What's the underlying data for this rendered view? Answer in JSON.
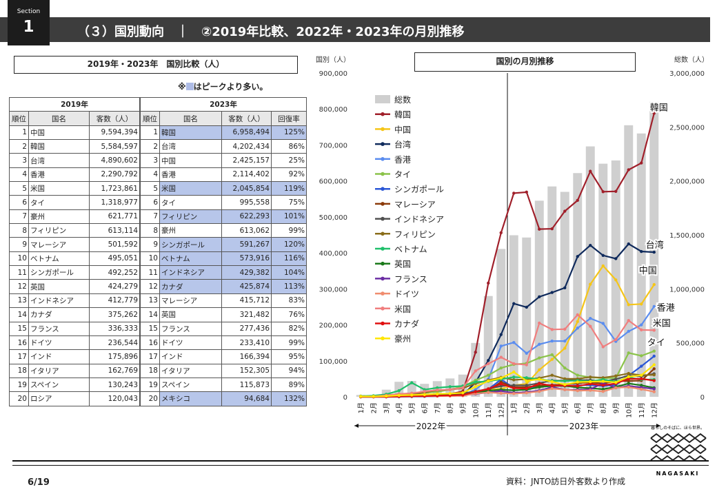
{
  "header": {
    "section_label": "Section",
    "section_num": "1",
    "title": "（３）国別動向　｜　②2019年比較、2022年・2023年の月別推移"
  },
  "left_title": "2019年・2023年　国別比較（人）",
  "note": "※■はピークより多い。",
  "table2019": {
    "group": "2019年",
    "headers": [
      "順位",
      "国名",
      "客数（人）"
    ],
    "rows": [
      [
        "1",
        "中国",
        "9,594,394"
      ],
      [
        "2",
        "韓国",
        "5,584,597"
      ],
      [
        "3",
        "台湾",
        "4,890,602"
      ],
      [
        "4",
        "香港",
        "2,290,792"
      ],
      [
        "5",
        "米国",
        "1,723,861"
      ],
      [
        "6",
        "タイ",
        "1,318,977"
      ],
      [
        "7",
        "豪州",
        "621,771"
      ],
      [
        "8",
        "フィリピン",
        "613,114"
      ],
      [
        "9",
        "マレーシア",
        "501,592"
      ],
      [
        "10",
        "ベトナム",
        "495,051"
      ],
      [
        "11",
        "シンガポール",
        "492,252"
      ],
      [
        "12",
        "英国",
        "424,279"
      ],
      [
        "13",
        "インドネシア",
        "412,779"
      ],
      [
        "14",
        "カナダ",
        "375,262"
      ],
      [
        "15",
        "フランス",
        "336,333"
      ],
      [
        "16",
        "ドイツ",
        "236,544"
      ],
      [
        "17",
        "インド",
        "175,896"
      ],
      [
        "18",
        "イタリア",
        "162,769"
      ],
      [
        "19",
        "スペイン",
        "130,243"
      ],
      [
        "20",
        "ロシア",
        "120,043"
      ]
    ]
  },
  "table2023": {
    "group": "2023年",
    "headers": [
      "順位",
      "国名",
      "客数（人）",
      "回復率"
    ],
    "rows": [
      [
        "1",
        "韓国",
        "6,958,494",
        "125%",
        true
      ],
      [
        "2",
        "台湾",
        "4,202,434",
        "86%",
        false
      ],
      [
        "3",
        "中国",
        "2,425,157",
        "25%",
        false
      ],
      [
        "4",
        "香港",
        "2,114,402",
        "92%",
        false
      ],
      [
        "5",
        "米国",
        "2,045,854",
        "119%",
        true
      ],
      [
        "6",
        "タイ",
        "995,558",
        "75%",
        false
      ],
      [
        "7",
        "フィリピン",
        "622,293",
        "101%",
        true
      ],
      [
        "8",
        "豪州",
        "613,062",
        "99%",
        false
      ],
      [
        "9",
        "シンガポール",
        "591,267",
        "120%",
        true
      ],
      [
        "10",
        "ベトナム",
        "573,916",
        "116%",
        true
      ],
      [
        "11",
        "インドネシア",
        "429,382",
        "104%",
        true
      ],
      [
        "12",
        "カナダ",
        "425,874",
        "113%",
        true
      ],
      [
        "13",
        "マレーシア",
        "415,712",
        "83%",
        false
      ],
      [
        "14",
        "英国",
        "321,482",
        "76%",
        false
      ],
      [
        "15",
        "フランス",
        "277,436",
        "82%",
        false
      ],
      [
        "16",
        "ドイツ",
        "233,410",
        "99%",
        false
      ],
      [
        "17",
        "インド",
        "166,394",
        "95%",
        false
      ],
      [
        "18",
        "イタリア",
        "152,305",
        "94%",
        false
      ],
      [
        "19",
        "スペイン",
        "115,873",
        "89%",
        false
      ],
      [
        "20",
        "メキシコ",
        "94,684",
        "132%",
        true
      ]
    ]
  },
  "right_title": "国別の月別推移",
  "chart_data": {
    "type": "line",
    "ylabel_left": "国別（人）",
    "ylabel_right": "総数（人）",
    "ylim_left": [
      0,
      900000
    ],
    "ylim_right": [
      0,
      3000000
    ],
    "yticks_left": [
      "0",
      "100,000",
      "200,000",
      "300,000",
      "400,000",
      "500,000",
      "600,000",
      "700,000",
      "800,000",
      "900,000"
    ],
    "yticks_right": [
      "0",
      "500,000",
      "1,000,000",
      "1,500,000",
      "2,000,000",
      "2,500,000",
      "3,000,000"
    ],
    "x": [
      "1月",
      "2月",
      "3月",
      "4月",
      "5月",
      "6月",
      "7月",
      "8月",
      "9月",
      "10月",
      "11月",
      "12月",
      "1月",
      "2月",
      "3月",
      "4月",
      "5月",
      "6月",
      "7月",
      "8月",
      "9月",
      "10月",
      "11月",
      "12月"
    ],
    "year_labels": [
      "2022年",
      "2023年"
    ],
    "bars": {
      "name": "総数",
      "color": "#cfcfcf",
      "values": [
        17000,
        16000,
        66000,
        139000,
        147000,
        120000,
        145000,
        170000,
        206000,
        499000,
        934000,
        1370000,
        1497000,
        1476000,
        1817000,
        1949000,
        1899000,
        2073000,
        2320000,
        2160000,
        2190000,
        2516000,
        2440000,
        2733000
      ]
    },
    "series": [
      {
        "name": "韓国",
        "color": "#a01f2a",
        "values": [
          1000,
          1000,
          2000,
          3000,
          3000,
          4000,
          6000,
          8000,
          15000,
          124000,
          316000,
          456000,
          566000,
          569000,
          466000,
          467000,
          516000,
          546000,
          627000,
          570000,
          571000,
          631000,
          650000,
          788000
        ]
      },
      {
        "name": "中国",
        "color": "#f5c518",
        "values": [
          1000,
          1000,
          2000,
          3000,
          3000,
          3000,
          5000,
          8000,
          10000,
          15000,
          20000,
          22000,
          32000,
          36000,
          75000,
          104000,
          135000,
          209000,
          313000,
          364000,
          325000,
          256000,
          258000,
          312000
        ]
      },
      {
        "name": "台湾",
        "color": "#0f2a5c",
        "values": [
          0,
          0,
          0,
          0,
          1000,
          1000,
          2000,
          3000,
          5000,
          40000,
          101000,
          173000,
          259000,
          249000,
          278000,
          290000,
          303000,
          390000,
          421000,
          393000,
          384000,
          425000,
          404000,
          402000
        ]
      },
      {
        "name": "香港",
        "color": "#5b8def",
        "values": [
          0,
          0,
          0,
          0,
          0,
          1000,
          2000,
          3000,
          5000,
          20000,
          49000,
          141000,
          151000,
          121000,
          146000,
          155000,
          155000,
          191000,
          218000,
          204000,
          154000,
          182000,
          200000,
          251000
        ]
      },
      {
        "name": "タイ",
        "color": "#8bc34a",
        "values": [
          1000,
          2000,
          5000,
          7000,
          10000,
          11000,
          14000,
          20000,
          29000,
          46000,
          60000,
          80000,
          90000,
          93000,
          108000,
          117000,
          80000,
          60000,
          54000,
          52000,
          52000,
          122000,
          114000,
          127000
        ]
      },
      {
        "name": "シンガポール",
        "color": "#2b57d6",
        "values": [
          0,
          0,
          0,
          1000,
          2000,
          3000,
          5000,
          5000,
          7000,
          12000,
          21000,
          48000,
          25000,
          25000,
          30000,
          30000,
          30000,
          32000,
          33000,
          30000,
          33000,
          59000,
          85000,
          113000
        ]
      },
      {
        "name": "マレーシア",
        "color": "#8b3a0a",
        "values": [
          0,
          0,
          1000,
          2000,
          3000,
          4000,
          6000,
          6000,
          8000,
          13000,
          18000,
          41000,
          27000,
          27000,
          31000,
          33000,
          34000,
          38000,
          40000,
          37000,
          43000,
          44000,
          45000,
          78000
        ]
      },
      {
        "name": "インドネシア",
        "color": "#505050",
        "values": [
          1000,
          1000,
          2000,
          3000,
          4000,
          5000,
          7000,
          8000,
          10000,
          15000,
          22000,
          30000,
          32000,
          32000,
          38000,
          45000,
          45000,
          47000,
          46000,
          43000,
          49000,
          59000,
          57000,
          64000
        ]
      },
      {
        "name": "フィリピン",
        "color": "#8a6d1a",
        "values": [
          1000,
          1000,
          2000,
          3000,
          6000,
          12000,
          18000,
          20000,
          24000,
          37000,
          46000,
          54000,
          47000,
          49000,
          52000,
          60000,
          50000,
          50000,
          55000,
          53000,
          58000,
          65000,
          60000,
          61000
        ]
      },
      {
        "name": "ベトナム",
        "color": "#1fbf6a",
        "values": [
          2000,
          3000,
          7000,
          17000,
          39000,
          20000,
          25000,
          28000,
          30000,
          41000,
          43000,
          49000,
          55000,
          53000,
          49000,
          44000,
          44000,
          45000,
          43000,
          48000,
          42000,
          54000,
          48000,
          48000
        ]
      },
      {
        "name": "英国",
        "color": "#1a7a1a",
        "values": [
          0,
          0,
          1000,
          2000,
          3000,
          4000,
          4000,
          5000,
          5000,
          10000,
          17000,
          20000,
          18000,
          20000,
          27000,
          30000,
          30000,
          26000,
          24000,
          21000,
          28000,
          37000,
          32000,
          25000
        ]
      },
      {
        "name": "フランス",
        "color": "#6b2ea3",
        "values": [
          0,
          0,
          0,
          1000,
          1000,
          2000,
          2000,
          3000,
          4000,
          8000,
          12000,
          16000,
          11000,
          13000,
          17000,
          27000,
          20000,
          19000,
          21000,
          38000,
          25000,
          30000,
          26000,
          22000
        ]
      },
      {
        "name": "ドイツ",
        "color": "#f08c6e",
        "values": [
          0,
          0,
          0,
          1000,
          1000,
          2000,
          2000,
          2000,
          3000,
          9000,
          12000,
          10000,
          9000,
          11000,
          15000,
          23000,
          20000,
          17000,
          18000,
          15000,
          25000,
          27000,
          21000,
          14000
        ]
      },
      {
        "name": "米国",
        "color": "#f07e7e",
        "values": [
          1000,
          1000,
          4000,
          8000,
          10000,
          15000,
          19000,
          20000,
          25000,
          72000,
          92000,
          110000,
          92000,
          89000,
          205000,
          187000,
          188000,
          228000,
          196000,
          139000,
          159000,
          212000,
          186000,
          185000
        ]
      },
      {
        "name": "カナダ",
        "color": "#e01010",
        "values": [
          0,
          0,
          0,
          1000,
          2000,
          2000,
          3000,
          4000,
          5000,
          14000,
          22000,
          36000,
          24000,
          23000,
          37000,
          31000,
          31000,
          30000,
          36000,
          32000,
          37000,
          50000,
          50000,
          45000
        ]
      },
      {
        "name": "豪州",
        "color": "#ffe600",
        "values": [
          1000,
          1000,
          2000,
          4000,
          5000,
          6000,
          8000,
          9000,
          11000,
          28000,
          44000,
          52000,
          69000,
          44000,
          49000,
          42000,
          34000,
          41000,
          42000,
          43000,
          40000,
          56000,
          60000,
          89000
        ]
      }
    ],
    "end_labels": [
      {
        "text": "韓国",
        "series": "韓国"
      },
      {
        "text": "香港",
        "series": "香港"
      },
      {
        "text": "中国",
        "series": "中国"
      },
      {
        "text": "台湾",
        "series": "台湾"
      },
      {
        "text": "米国",
        "series": "米国"
      },
      {
        "text": "タイ",
        "series": "タイ"
      }
    ]
  },
  "footer": {
    "page": "6/19",
    "source": "資料：JNTO訪日外客数より作成",
    "logo_tagline": "暮らしのそばに、ほら世界。",
    "logo_name": "NAGASAKI"
  }
}
